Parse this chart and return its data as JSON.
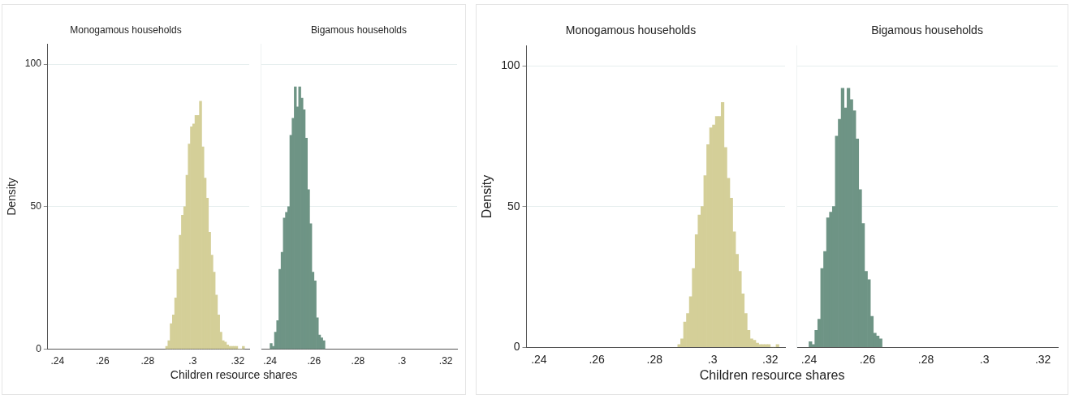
{
  "chart_data": [
    {
      "type": "histogram",
      "title": "Monogamous households",
      "xlabel": "Children resource shares",
      "ylabel": "Density",
      "color": "#d4cf98",
      "bins": [
        0.288,
        0.289,
        0.29,
        0.291,
        0.292,
        0.293,
        0.294,
        0.295,
        0.296,
        0.297,
        0.298,
        0.299,
        0.3,
        0.301,
        0.302,
        0.303,
        0.304,
        0.305,
        0.306,
        0.307,
        0.308,
        0.309,
        0.31,
        0.311,
        0.312,
        0.313,
        0.314,
        0.315,
        0.316,
        0.317,
        0.318,
        0.319,
        0.32,
        0.321,
        0.322,
        0.323
      ],
      "values": [
        1,
        3,
        9,
        12,
        18,
        28,
        40,
        47,
        50,
        61,
        72,
        78,
        79,
        82,
        82,
        87,
        71,
        60,
        53,
        41,
        33,
        27,
        19,
        12,
        6,
        3,
        2.5,
        1.5,
        1,
        1,
        1,
        1,
        0,
        0,
        1
      ],
      "xlim": [
        0.2357,
        0.3251
      ],
      "xticks": [
        {
          "value": 0.24,
          "label": ".24"
        },
        {
          "value": 0.26,
          "label": ".26"
        },
        {
          "value": 0.28,
          "label": ".28"
        },
        {
          "value": 0.3,
          "label": ".3"
        },
        {
          "value": 0.32,
          "label": ".32"
        }
      ],
      "ylim": [
        0,
        107
      ],
      "yticks": [
        0,
        50,
        100
      ],
      "grid": "y",
      "legend": false
    },
    {
      "type": "histogram",
      "title": "Bigamous households",
      "color": "#6e9485",
      "tick_labels": "x",
      "bins": [
        0.24,
        0.241,
        0.242,
        0.243,
        0.244,
        0.245,
        0.246,
        0.247,
        0.248,
        0.249,
        0.25,
        0.251,
        0.252,
        0.253,
        0.254,
        0.255,
        0.256,
        0.257,
        0.258,
        0.259,
        0.26,
        0.261,
        0.262,
        0.263,
        0.264,
        0.265
      ],
      "values": [
        2,
        1,
        6,
        10,
        28,
        34,
        46,
        48,
        50,
        75,
        81,
        92,
        85,
        92,
        88,
        84,
        74,
        56,
        44,
        27,
        24,
        11,
        5,
        4,
        3
      ],
      "xlim": [
        0.2357,
        0.3251
      ],
      "xticks": [
        {
          "value": 0.24,
          "label": ".24"
        },
        {
          "value": 0.26,
          "label": ".26"
        },
        {
          "value": 0.28,
          "label": ".28"
        },
        {
          "value": 0.3,
          "label": ".3"
        },
        {
          "value": 0.32,
          "label": ".32"
        }
      ],
      "ylim": [
        0,
        107
      ],
      "yticks": [
        0,
        50,
        100
      ],
      "grid": "y",
      "legend": false
    },
    {
      "type": "histogram",
      "title": "Monogamous households",
      "xlabel": "Children resource shares",
      "ylabel": "Density",
      "color": "#d4cf98",
      "bins": [
        0.288,
        0.289,
        0.29,
        0.291,
        0.292,
        0.293,
        0.294,
        0.295,
        0.296,
        0.297,
        0.298,
        0.299,
        0.3,
        0.301,
        0.302,
        0.303,
        0.304,
        0.305,
        0.306,
        0.307,
        0.308,
        0.309,
        0.31,
        0.311,
        0.312,
        0.313,
        0.314,
        0.315,
        0.316,
        0.317,
        0.318,
        0.319,
        0.32,
        0.321,
        0.322,
        0.323
      ],
      "values": [
        1,
        3,
        9,
        12,
        18,
        28,
        40,
        47,
        50,
        61,
        72,
        78,
        79,
        82,
        82,
        87,
        71,
        60,
        53,
        41,
        33,
        27,
        19,
        12,
        6,
        3,
        2.5,
        1.5,
        1,
        1,
        1,
        1,
        0,
        0,
        1
      ],
      "xlim": [
        0.2357,
        0.3251
      ],
      "xticks": [
        {
          "value": 0.24,
          "label": ".24"
        },
        {
          "value": 0.26,
          "label": ".26"
        },
        {
          "value": 0.28,
          "label": ".28"
        },
        {
          "value": 0.3,
          "label": ".3"
        },
        {
          "value": 0.32,
          "label": ".32"
        }
      ],
      "ylim": [
        0,
        107
      ],
      "yticks": [
        0,
        50,
        100
      ],
      "grid": "y",
      "legend": false
    },
    {
      "type": "histogram",
      "title": "Bigamous households",
      "color": "#6e9485",
      "tick_labels": "x",
      "bins": [
        0.24,
        0.241,
        0.242,
        0.243,
        0.244,
        0.245,
        0.246,
        0.247,
        0.248,
        0.249,
        0.25,
        0.251,
        0.252,
        0.253,
        0.254,
        0.255,
        0.256,
        0.257,
        0.258,
        0.259,
        0.26,
        0.261,
        0.262,
        0.263,
        0.264,
        0.265
      ],
      "values": [
        2,
        1,
        6,
        10,
        28,
        34,
        46,
        48,
        50,
        75,
        81,
        92,
        85,
        92,
        88,
        84,
        74,
        56,
        44,
        27,
        24,
        11,
        5,
        4,
        3
      ],
      "xlim": [
        0.2357,
        0.3251
      ],
      "xticks": [
        {
          "value": 0.24,
          "label": ".24"
        },
        {
          "value": 0.26,
          "label": ".26"
        },
        {
          "value": 0.28,
          "label": ".28"
        },
        {
          "value": 0.3,
          "label": ".3"
        },
        {
          "value": 0.32,
          "label": ".32"
        }
      ],
      "ylim": [
        0,
        107
      ],
      "yticks": [
        0,
        50,
        100
      ],
      "grid": "y",
      "legend": false
    }
  ]
}
